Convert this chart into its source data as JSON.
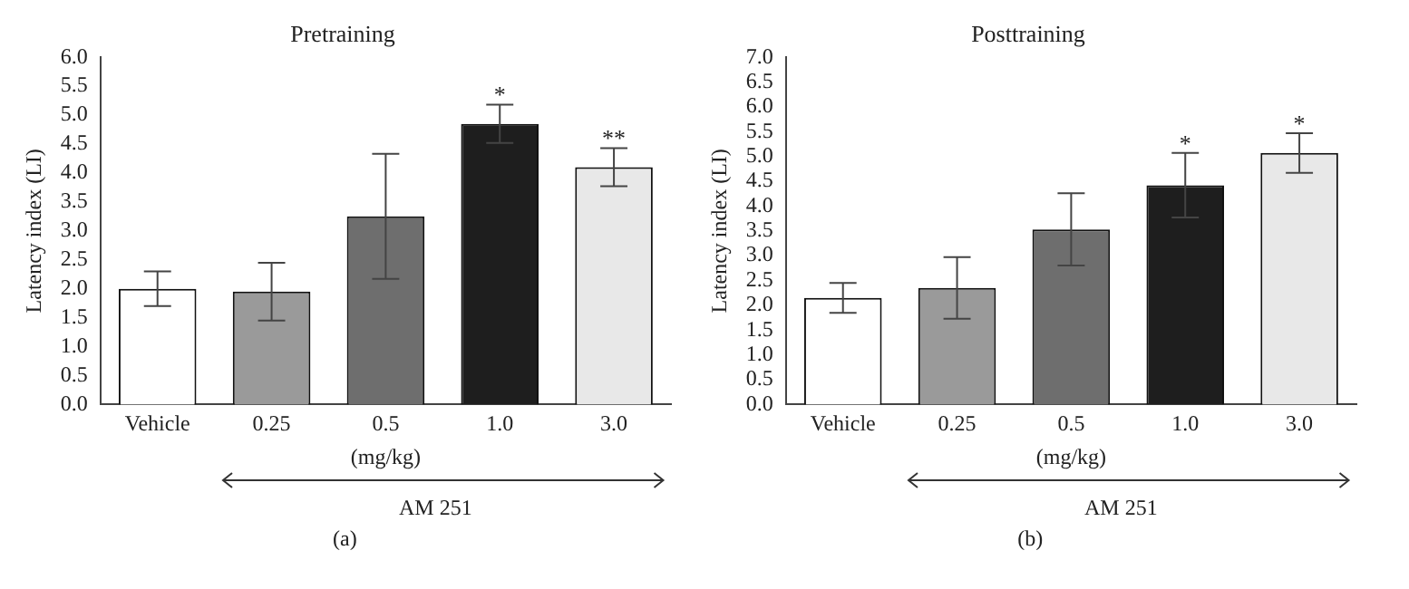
{
  "chart_data": [
    {
      "type": "bar",
      "title": "Pretraining",
      "xlabel": "(mg/kg)",
      "ylabel": "Latency index (LI)",
      "categories": [
        "Vehicle",
        "0.25",
        "0.5",
        "1.0",
        "3.0"
      ],
      "values": [
        2.0,
        1.95,
        3.25,
        4.85,
        4.1
      ],
      "errors": [
        0.3,
        0.5,
        1.08,
        0.33,
        0.33
      ],
      "colors": [
        "#ffffff",
        "#9a9a9a",
        "#6e6e6e",
        "#1e1e1e",
        "#e8e8e8"
      ],
      "ylim": [
        0,
        6
      ],
      "yticks": [
        {
          "value": 0,
          "label": "0.0"
        },
        0.5,
        {
          "value": 1,
          "label": "1.0"
        },
        1.5,
        {
          "value": 2,
          "label": "2.0"
        },
        2.5,
        {
          "value": 3,
          "label": "3.0"
        },
        3.5,
        {
          "value": 4,
          "label": "4.0"
        },
        4.5,
        {
          "value": 5,
          "label": "5.0"
        },
        5.5,
        {
          "value": 6,
          "label": "6.0"
        }
      ],
      "grid": false,
      "legend": false,
      "annotations": [
        {
          "text": "*",
          "x": "1.0",
          "y": 5.18
        },
        {
          "text": "**",
          "x": "3.0",
          "y": 4.43
        },
        "AM 251",
        "(a)"
      ]
    },
    {
      "type": "bar",
      "title": "Posttraining",
      "xlabel": "(mg/kg)",
      "ylabel": "Latency index (LI)",
      "categories": [
        "Vehicle",
        "0.25",
        "0.5",
        "1.0",
        "3.0"
      ],
      "values": [
        2.15,
        2.35,
        3.53,
        4.42,
        5.07
      ],
      "errors": [
        0.3,
        0.62,
        0.73,
        0.65,
        0.4
      ],
      "colors": [
        "#ffffff",
        "#9a9a9a",
        "#6e6e6e",
        "#1e1e1e",
        "#e8e8e8"
      ],
      "ylim": [
        0,
        7
      ],
      "yticks": [
        {
          "value": 0,
          "label": "0.0"
        },
        0.5,
        {
          "value": 1,
          "label": "1.0"
        },
        1.5,
        {
          "value": 2,
          "label": "2.0"
        },
        2.5,
        {
          "value": 3,
          "label": "3.0"
        },
        3.5,
        {
          "value": 4,
          "label": "4.0"
        },
        4.5,
        {
          "value": 5,
          "label": "5.0"
        },
        5.5,
        {
          "value": 6,
          "label": "6.0"
        },
        6.5,
        {
          "value": 7,
          "label": "7.0"
        }
      ],
      "grid": false,
      "legend": false,
      "annotations": [
        {
          "text": "*",
          "x": "1.0",
          "y": 5.07
        },
        {
          "text": "*",
          "x": "3.0",
          "y": 5.47
        },
        "AM 251",
        "(b)"
      ]
    }
  ]
}
